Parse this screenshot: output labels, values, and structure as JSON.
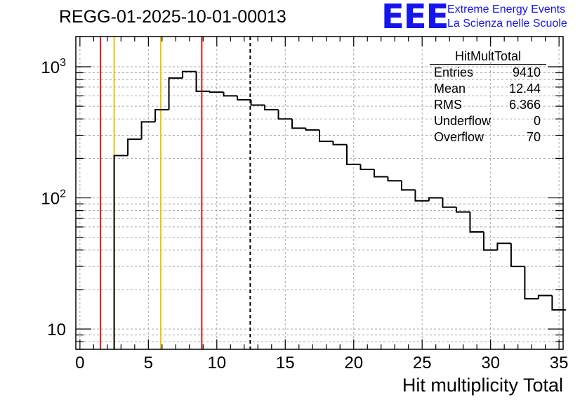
{
  "header": {
    "run_id": "REGG-01-2025-10-01-00013",
    "logo": "EEE",
    "logo_line1": "Extreme Energy Events",
    "logo_line2": "La Scienza nelle Scuole"
  },
  "stats": {
    "title": "HitMultTotal",
    "rows": [
      {
        "label": "Entries",
        "value": "9410"
      },
      {
        "label": "Mean",
        "value": "12.44"
      },
      {
        "label": "RMS",
        "value": "6.366"
      },
      {
        "label": "Underflow",
        "value": "0"
      },
      {
        "label": "Overflow",
        "value": "70"
      }
    ]
  },
  "chart_data": {
    "type": "histogram",
    "title": "REGG-01-2025-10-01-00013",
    "xlabel": "Hit multiplicity Total",
    "ylabel": "",
    "xlim": [
      -0.3,
      35.3
    ],
    "ylim": [
      7,
      1700
    ],
    "yscale": "log",
    "grid": true,
    "bin_width": 1,
    "bin_start": 2.5,
    "values": [
      210,
      280,
      380,
      470,
      820,
      920,
      650,
      640,
      600,
      560,
      510,
      470,
      400,
      340,
      330,
      270,
      255,
      180,
      165,
      145,
      135,
      115,
      95,
      100,
      85,
      78,
      55,
      40,
      45,
      30,
      17,
      18,
      14
    ],
    "x_ticks": [
      0,
      5,
      10,
      15,
      20,
      25,
      30,
      35
    ],
    "x_tick_labels": [
      "0",
      "5",
      "10",
      "15",
      "20",
      "25",
      "30",
      "35"
    ],
    "y_ticks": [
      10,
      100,
      1000
    ],
    "y_tick_labels": [
      "10",
      "10^2",
      "10^3"
    ],
    "vertical_lines": [
      {
        "x": 1.5,
        "color": "#ee1111",
        "style": "solid"
      },
      {
        "x": 2.5,
        "color": "#f2c200",
        "style": "solid"
      },
      {
        "x": 5.9,
        "color": "#f2c200",
        "style": "solid"
      },
      {
        "x": 8.9,
        "color": "#ee1111",
        "style": "solid"
      },
      {
        "x": 12.44,
        "color": "#000000",
        "style": "dashed"
      }
    ],
    "colors": {
      "line": "#000000",
      "grid": "#a8a8a8",
      "frame": "#000000"
    }
  }
}
